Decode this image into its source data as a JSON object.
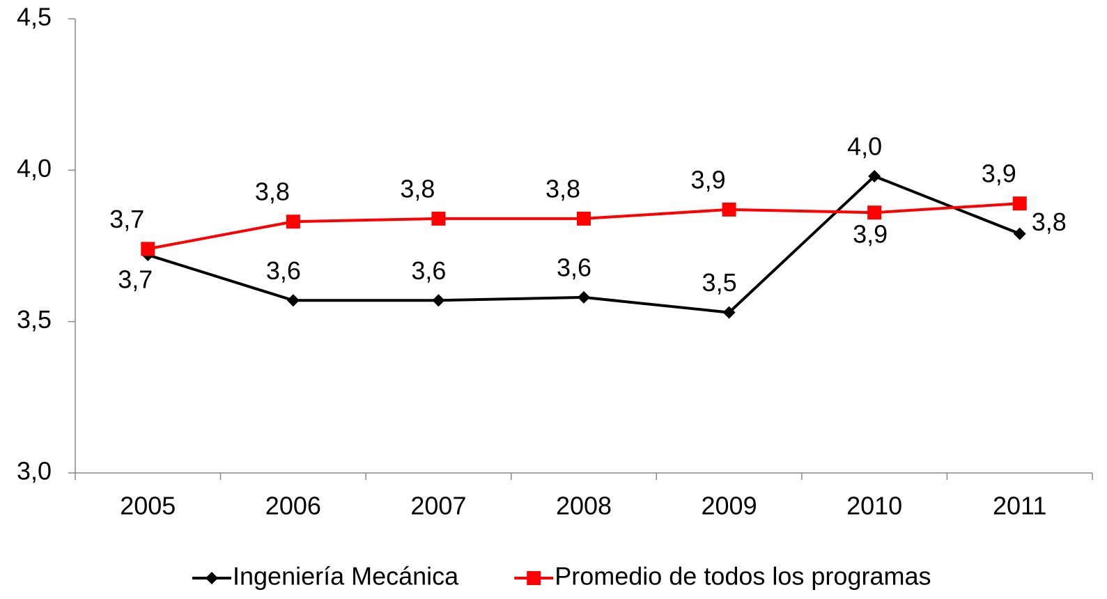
{
  "chart_data": {
    "type": "line",
    "categories": [
      "2005",
      "2006",
      "2007",
      "2008",
      "2009",
      "2010",
      "2011"
    ],
    "series": [
      {
        "name": "Ingeniería Mecánica",
        "color": "#000000",
        "marker": "diamond",
        "values": [
          3.72,
          3.57,
          3.57,
          3.58,
          3.53,
          3.98,
          3.79
        ],
        "value_labels": [
          "3,7",
          "3,6",
          "3,6",
          "3,6",
          "3,5",
          "4,0",
          "3,8"
        ]
      },
      {
        "name": "Promedio de todos los programas",
        "color": "#ff0000",
        "marker": "square",
        "values": [
          3.74,
          3.83,
          3.84,
          3.84,
          3.87,
          3.86,
          3.89
        ],
        "value_labels": [
          "3,7",
          "3,8",
          "3,8",
          "3,8",
          "3,9",
          "3,9",
          "3,9"
        ]
      }
    ],
    "ylim": [
      3,
      4.5
    ],
    "yticks": [
      {
        "value": 3,
        "label": "3,0"
      },
      {
        "value": 3.5,
        "label": "3,5"
      },
      {
        "value": 4,
        "label": "4,0"
      },
      {
        "value": 4.5,
        "label": "4,5"
      }
    ],
    "grid": false,
    "legend": "bottom"
  }
}
